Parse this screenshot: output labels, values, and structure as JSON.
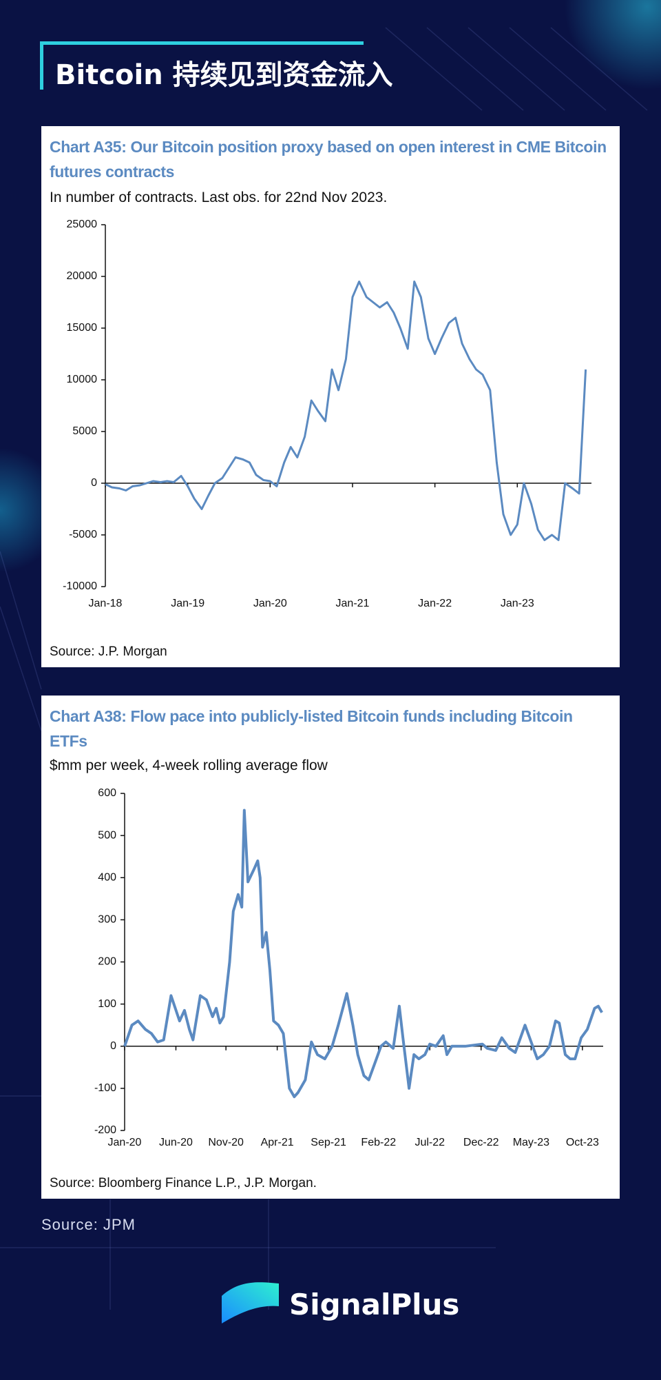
{
  "header": {
    "title": "Bitcoin 持续见到资金流入"
  },
  "chart_data": [
    {
      "type": "line",
      "title": "Chart A35: Our Bitcoin position proxy based on open interest in CME Bitcoin futures contracts",
      "subtitle": "In number of contracts. Last obs. for 22nd Nov 2023.",
      "source": "Source: J.P. Morgan",
      "x": [
        2018,
        2018.08,
        2018.17,
        2018.25,
        2018.33,
        2018.42,
        2018.5,
        2018.58,
        2018.67,
        2018.75,
        2018.83,
        2018.92,
        2019,
        2019.08,
        2019.17,
        2019.25,
        2019.33,
        2019.42,
        2019.5,
        2019.58,
        2019.67,
        2019.75,
        2019.83,
        2019.92,
        2020,
        2020.08,
        2020.17,
        2020.25,
        2020.33,
        2020.42,
        2020.5,
        2020.58,
        2020.67,
        2020.75,
        2020.83,
        2020.92,
        2021,
        2021.08,
        2021.17,
        2021.25,
        2021.33,
        2021.42,
        2021.5,
        2021.58,
        2021.67,
        2021.75,
        2021.83,
        2021.92,
        2022,
        2022.08,
        2022.17,
        2022.25,
        2022.33,
        2022.42,
        2022.5,
        2022.58,
        2022.67,
        2022.75,
        2022.83,
        2022.92,
        2023,
        2023.08,
        2023.17,
        2023.25,
        2023.33,
        2023.42,
        2023.5,
        2023.58,
        2023.67,
        2023.75,
        2023.83
      ],
      "series": [
        {
          "name": "Bitcoin position proxy",
          "color": "#5b8ac1",
          "values": [
            -100,
            -400,
            -500,
            -700,
            -300,
            -200,
            0,
            200,
            100,
            200,
            100,
            700,
            -300,
            -1500,
            -2500,
            -1200,
            0,
            500,
            1500,
            2500,
            2300,
            2000,
            800,
            300,
            200,
            -300,
            2000,
            3500,
            2500,
            4500,
            8000,
            7000,
            6000,
            11000,
            9000,
            12000,
            18000,
            19500,
            18000,
            17500,
            17000,
            17500,
            16500,
            15000,
            13000,
            19500,
            18000,
            14000,
            12500,
            14000,
            15500,
            16000,
            13500,
            12000,
            11000,
            10500,
            9000,
            2000,
            -3000,
            -5000,
            -4000,
            0,
            -2000,
            -4500,
            -5500,
            -5000,
            -5500,
            0,
            -500,
            -1000,
            11000
          ]
        }
      ],
      "xlim": [
        2018,
        2023.9
      ],
      "xticks": [
        {
          "value": 2018,
          "label": "Jan-18"
        },
        {
          "value": 2019,
          "label": "Jan-19"
        },
        {
          "value": 2020,
          "label": "Jan-20"
        },
        {
          "value": 2021,
          "label": "Jan-21"
        },
        {
          "value": 2022,
          "label": "Jan-22"
        },
        {
          "value": 2023,
          "label": "Jan-23"
        }
      ],
      "ylim": [
        -10000,
        25000
      ],
      "yticks": [
        -10000,
        -5000,
        0,
        5000,
        10000,
        15000,
        20000,
        25000
      ]
    },
    {
      "type": "line",
      "title": "Chart A38: Flow pace into publicly-listed Bitcoin funds including Bitcoin ETFs",
      "subtitle": "$mm per week, 4-week rolling average flow",
      "source": "Source: Bloomberg Finance L.P., J.P. Morgan.",
      "x": [
        2020.0,
        2020.06,
        2020.11,
        2020.17,
        2020.22,
        2020.27,
        2020.32,
        2020.38,
        2020.45,
        2020.49,
        2020.53,
        2020.56,
        2020.62,
        2020.67,
        2020.72,
        2020.75,
        2020.78,
        2020.81,
        2020.86,
        2020.89,
        2020.93,
        2020.96,
        2020.98,
        2021.01,
        2021.06,
        2021.09,
        2021.11,
        2021.13,
        2021.16,
        2021.19,
        2021.22,
        2021.26,
        2021.3,
        2021.35,
        2021.39,
        2021.42,
        2021.48,
        2021.53,
        2021.58,
        2021.64,
        2021.7,
        2021.75,
        2021.82,
        2021.87,
        2021.91,
        2021.96,
        2022.0,
        2022.05,
        2022.1,
        2022.14,
        2022.2,
        2022.25,
        2022.28,
        2022.33,
        2022.37,
        2022.41,
        2022.46,
        2022.5,
        2022.55,
        2022.61,
        2022.64,
        2022.68,
        2022.79,
        2022.93,
        2022.97,
        2023.04,
        2023.09,
        2023.15,
        2023.2,
        2023.28,
        2023.33,
        2023.38,
        2023.43,
        2023.48,
        2023.53,
        2023.56,
        2023.61,
        2023.65,
        2023.69,
        2023.74,
        2023.79,
        2023.85,
        2023.88,
        2023.91
      ],
      "series": [
        {
          "name": "Flow pace",
          "color": "#5b8ac1",
          "values": [
            0,
            50,
            60,
            40,
            30,
            10,
            15,
            120,
            60,
            85,
            40,
            15,
            120,
            110,
            70,
            90,
            55,
            70,
            200,
            320,
            360,
            330,
            560,
            390,
            420,
            440,
            400,
            235,
            270,
            180,
            60,
            50,
            30,
            -100,
            -120,
            -110,
            -80,
            10,
            -20,
            -30,
            0,
            50,
            125,
            50,
            -20,
            -70,
            -80,
            -40,
            0,
            10,
            -5,
            95,
            20,
            -100,
            -20,
            -30,
            -20,
            5,
            0,
            25,
            -20,
            0,
            0,
            5,
            -5,
            -10,
            20,
            -5,
            -15,
            50,
            10,
            -30,
            -20,
            0,
            60,
            55,
            -20,
            -30,
            -30,
            20,
            40,
            90,
            95,
            80
          ]
        }
      ],
      "xlim": [
        2020,
        2023.92
      ],
      "xticks": [
        {
          "value": 2020,
          "label": "Jan-20"
        },
        {
          "value": 2020.42,
          "label": "Jun-20"
        },
        {
          "value": 2020.83,
          "label": "Nov-20"
        },
        {
          "value": 2021.25,
          "label": "Apr-21"
        },
        {
          "value": 2021.67,
          "label": "Sep-21"
        },
        {
          "value": 2022.08,
          "label": "Feb-22"
        },
        {
          "value": 2022.5,
          "label": "Jul-22"
        },
        {
          "value": 2022.92,
          "label": "Dec-22"
        },
        {
          "value": 2023.33,
          "label": "May-23"
        },
        {
          "value": 2023.75,
          "label": "Oct-23"
        }
      ],
      "ylim": [
        -200,
        600
      ],
      "yticks": [
        -200,
        -100,
        0,
        100,
        200,
        300,
        400,
        500,
        600
      ]
    }
  ],
  "footer": {
    "source": "Source: JPM",
    "brand": "SignalPlus"
  }
}
